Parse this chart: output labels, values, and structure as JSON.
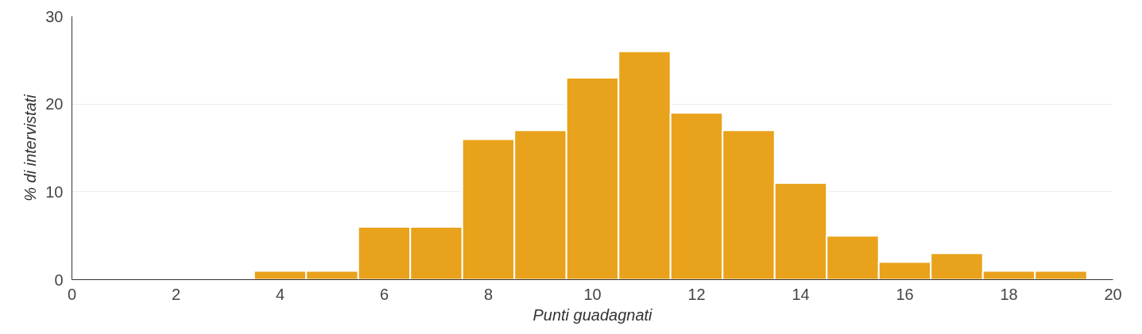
{
  "chart_data": {
    "type": "histogram",
    "xlabel": "Punti guadagnati",
    "ylabel": "% di intervistati",
    "bins": [
      3.5,
      4.5,
      5.5,
      6.5,
      7.5,
      8.5,
      9.5,
      10.5,
      11.5,
      12.5,
      13.5,
      14.5,
      15.5,
      16.5,
      17.5,
      18.5,
      19.5
    ],
    "values": [
      1,
      1,
      6,
      6,
      16,
      17,
      23,
      26,
      19,
      17,
      11,
      5,
      2,
      3,
      1,
      1
    ],
    "color": "#e8a21b",
    "xlim": [
      0,
      20
    ],
    "xticks": [
      0,
      2,
      4,
      6,
      8,
      10,
      12,
      14,
      16,
      18,
      20
    ],
    "ylim": [
      0,
      30
    ],
    "yticks": [
      0,
      10,
      20,
      30
    ],
    "grid": "y"
  }
}
